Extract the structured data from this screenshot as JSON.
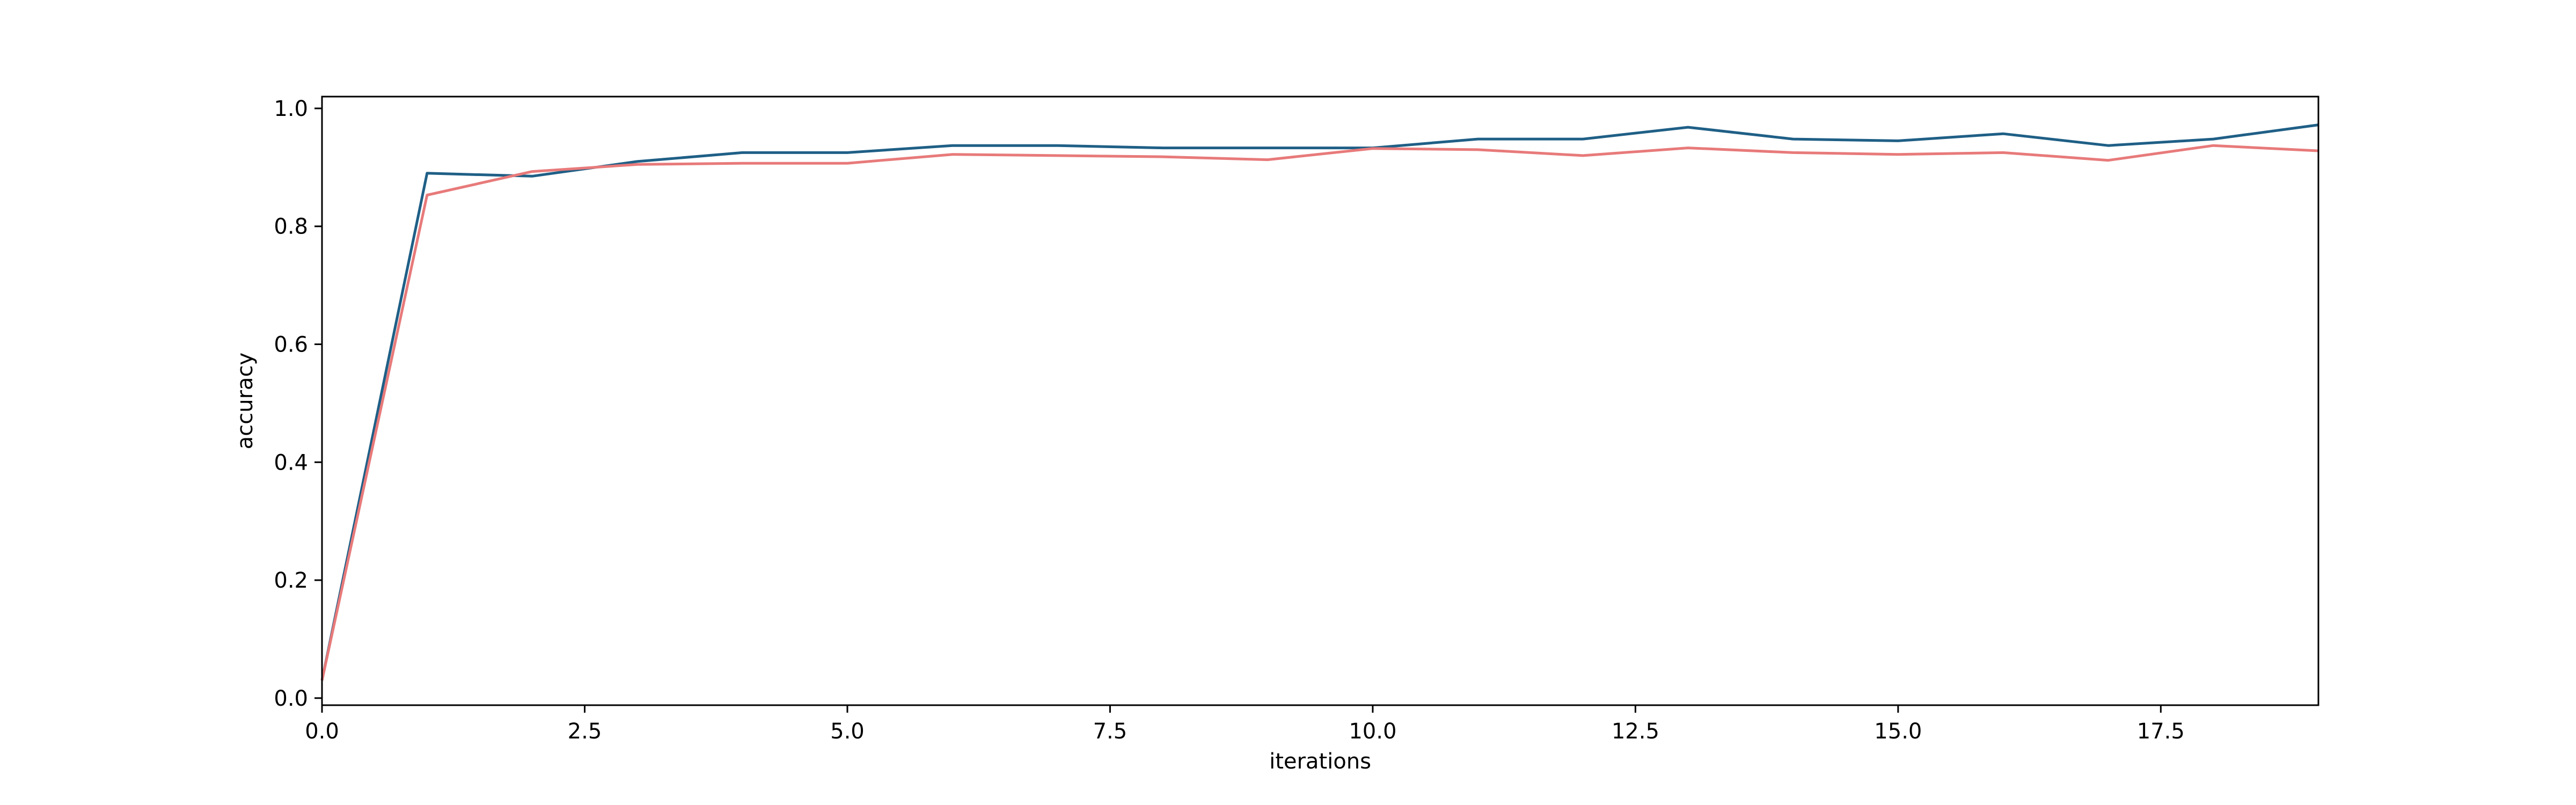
{
  "chart_data": {
    "type": "line",
    "title": "",
    "xlabel": "iterations",
    "ylabel": "accuracy",
    "xlim": [
      0,
      19
    ],
    "ylim": [
      -0.012,
      1.02
    ],
    "xticks": [
      0.0,
      2.5,
      5.0,
      7.5,
      10.0,
      12.5,
      15.0,
      17.5
    ],
    "xtick_labels": [
      "0.0",
      "2.5",
      "5.0",
      "7.5",
      "10.0",
      "12.5",
      "15.0",
      "17.5"
    ],
    "yticks": [
      0.0,
      0.2,
      0.4,
      0.6,
      0.8,
      1.0
    ],
    "ytick_labels": [
      "0.0",
      "0.2",
      "0.4",
      "0.6",
      "0.8",
      "1.0"
    ],
    "grid": false,
    "legend": false,
    "x": [
      0,
      1,
      2,
      3,
      4,
      5,
      6,
      7,
      8,
      9,
      10,
      11,
      12,
      13,
      14,
      15,
      16,
      17,
      18,
      19
    ],
    "series": [
      {
        "color": "#1f5f86",
        "values": [
          0.03,
          0.89,
          0.885,
          0.91,
          0.925,
          0.925,
          0.937,
          0.937,
          0.933,
          0.933,
          0.933,
          0.948,
          0.948,
          0.968,
          0.948,
          0.945,
          0.957,
          0.937,
          0.948,
          0.972
        ]
      },
      {
        "color": "#e87a7a",
        "values": [
          0.03,
          0.853,
          0.893,
          0.905,
          0.907,
          0.907,
          0.922,
          0.92,
          0.918,
          0.913,
          0.932,
          0.93,
          0.92,
          0.933,
          0.925,
          0.922,
          0.925,
          0.912,
          0.937,
          0.928
        ]
      }
    ]
  }
}
